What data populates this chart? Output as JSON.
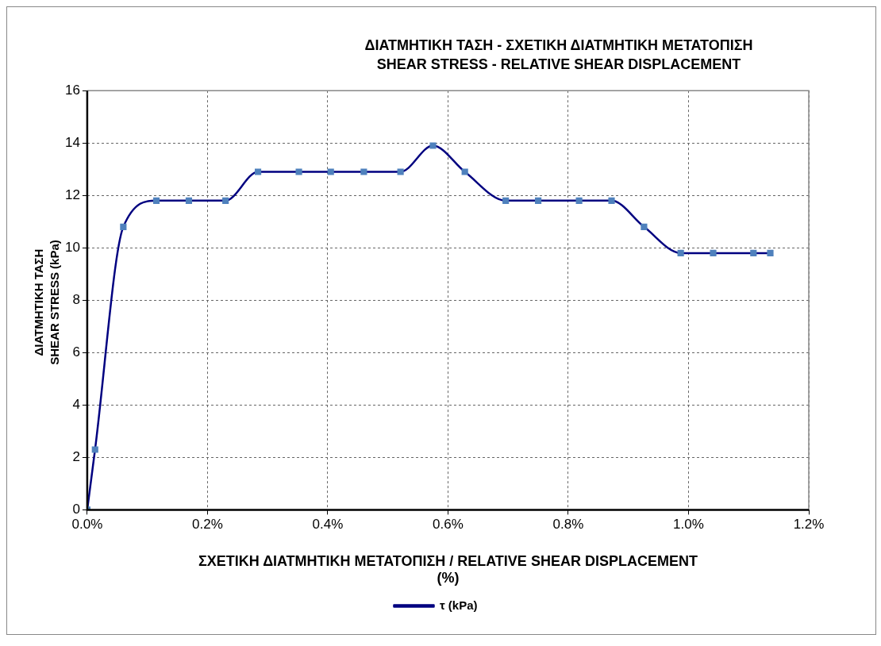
{
  "chart_data": {
    "type": "line",
    "title": "ΔΙΑΤΜΗΤΙΚΗ ΤΑΣΗ - ΣΧΕΤΙΚΗ ΔΙΑΤΜΗΤΙΚΗ ΜΕΤΑΤΟΠΙΣΗ",
    "subtitle": "SHEAR STRESS - RELATIVE SHEAR DISPLACEMENT",
    "xlabel": "ΣΧΕΤΙΚΗ ΔΙΑΤΜΗΤΙΚΗ ΜΕΤΑΤΟΠΙΣΗ / RELATIVE SHEAR DISPLACEMENT\n(%)",
    "ylabel": "ΔΙΑΤΜΗΤΙΚΗ ΤΑΣΗ\nSHEAR STRESS (kPa)",
    "series": [
      {
        "name": "τ (kPa)",
        "color": "#000080",
        "x": [
          0,
          0.013,
          0.06,
          0.115,
          0.169,
          0.23,
          0.284,
          0.352,
          0.405,
          0.46,
          0.521,
          0.575,
          0.628,
          0.696,
          0.75,
          0.818,
          0.872,
          0.926,
          0.987,
          1.041,
          1.108,
          1.136
        ],
        "values": [
          0,
          2.3,
          10.8,
          11.8,
          11.8,
          11.8,
          12.9,
          12.9,
          12.9,
          12.9,
          12.9,
          13.9,
          12.9,
          11.8,
          11.8,
          11.8,
          11.8,
          10.8,
          9.8,
          9.8,
          9.8,
          9.8
        ]
      }
    ],
    "xlim": [
      0,
      1.2
    ],
    "xticks": [
      {
        "value": 0,
        "label": "0.0%"
      },
      {
        "value": 0.2,
        "label": "0.2%"
      },
      {
        "value": 0.4,
        "label": "0.4%"
      },
      {
        "value": 0.6,
        "label": "0.6%"
      },
      {
        "value": 0.8,
        "label": "0.8%"
      },
      {
        "value": 1.0,
        "label": "1.0%"
      },
      {
        "value": 1.2,
        "label": "1.2%"
      }
    ],
    "ylim": [
      0,
      16
    ],
    "yticks": [
      0,
      2,
      4,
      6,
      8,
      10,
      12,
      14,
      16
    ],
    "grid": true,
    "legend": "bottom",
    "marker": "square",
    "line_style": "solid"
  }
}
